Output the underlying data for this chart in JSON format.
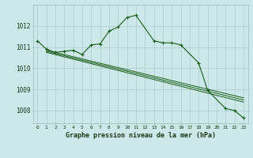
{
  "title": "Graphe pression niveau de la mer (hPa)",
  "bg_color": "#cce8e8",
  "grid_color": "#aacccc",
  "line_color": "#1a5c1a",
  "xlim": [
    -0.5,
    23.5
  ],
  "ylim": [
    1007.4,
    1013.0
  ],
  "yticks": [
    1008,
    1009,
    1010,
    1011,
    1012
  ],
  "xticks": [
    0,
    1,
    2,
    3,
    4,
    5,
    6,
    7,
    8,
    9,
    10,
    11,
    12,
    13,
    14,
    15,
    16,
    17,
    18,
    19,
    20,
    21,
    22,
    23
  ],
  "main_x": [
    0,
    1,
    2,
    3,
    4,
    5,
    6,
    7,
    8,
    9,
    10,
    11,
    13,
    14,
    15,
    16,
    18,
    19,
    21,
    22,
    23
  ],
  "main_y": [
    1011.3,
    1010.9,
    1010.75,
    1010.8,
    1010.85,
    1010.65,
    1011.1,
    1011.15,
    1011.75,
    1011.95,
    1012.4,
    1012.5,
    1011.3,
    1011.2,
    1011.2,
    1011.1,
    1010.25,
    1008.95,
    1008.1,
    1008.0,
    1007.65
  ],
  "trend_lines": [
    {
      "x0": 1,
      "y0": 1010.85,
      "x1": 23,
      "y1": 1008.6
    },
    {
      "x0": 1,
      "y0": 1010.8,
      "x1": 23,
      "y1": 1008.5
    },
    {
      "x0": 1,
      "y0": 1010.75,
      "x1": 23,
      "y1": 1008.4
    }
  ]
}
